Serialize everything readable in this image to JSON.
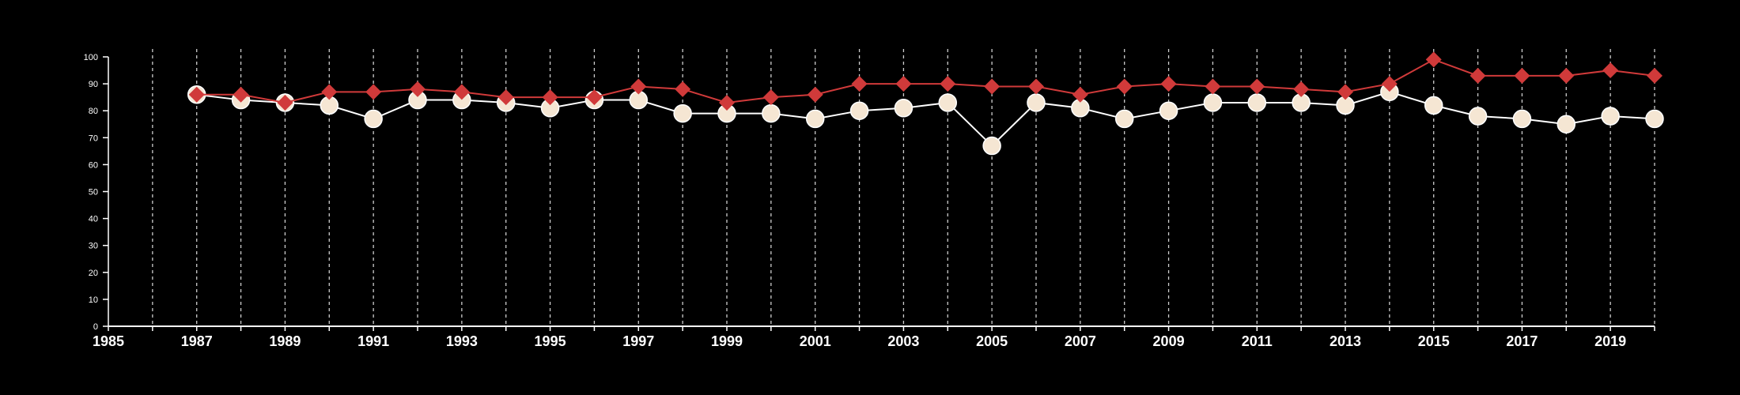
{
  "chart_data": {
    "type": "line",
    "title": "",
    "xlabel": "",
    "ylabel": "",
    "xlim": [
      1985,
      2020
    ],
    "ylim": [
      0,
      100
    ],
    "x_ticks": [
      1985,
      1987,
      1989,
      1991,
      1993,
      1995,
      1997,
      1999,
      2001,
      2003,
      2005,
      2007,
      2009,
      2011,
      2013,
      2015,
      2017,
      2019
    ],
    "y_ticks": [
      0,
      10,
      20,
      30,
      40,
      50,
      60,
      70,
      80,
      90,
      100
    ],
    "grid": "vertical dashed lines at each year",
    "legend": "none",
    "x": [
      1987,
      1988,
      1989,
      1990,
      1991,
      1992,
      1993,
      1994,
      1995,
      1996,
      1997,
      1998,
      1999,
      2000,
      2001,
      2002,
      2003,
      2004,
      2005,
      2006,
      2007,
      2008,
      2009,
      2010,
      2011,
      2012,
      2013,
      2014,
      2015,
      2016,
      2017,
      2018,
      2019,
      2020
    ],
    "series": [
      {
        "marker": "circle",
        "color": "#f5e6d3",
        "values": [
          86,
          84,
          83,
          82,
          77,
          84,
          84,
          83,
          81,
          84,
          84,
          79,
          79,
          79,
          77,
          80,
          81,
          83,
          67,
          83,
          81,
          77,
          80,
          83,
          83,
          83,
          82,
          87,
          82,
          78,
          77,
          75,
          78,
          77
        ]
      },
      {
        "marker": "diamond",
        "color": "#d03a3a",
        "values": [
          86,
          86,
          83,
          87,
          87,
          88,
          87,
          85,
          85,
          85,
          89,
          88,
          83,
          85,
          86,
          90,
          90,
          90,
          89,
          89,
          86,
          89,
          90,
          89,
          89,
          88,
          87,
          90,
          99,
          93,
          93,
          93,
          95,
          93
        ]
      }
    ]
  }
}
